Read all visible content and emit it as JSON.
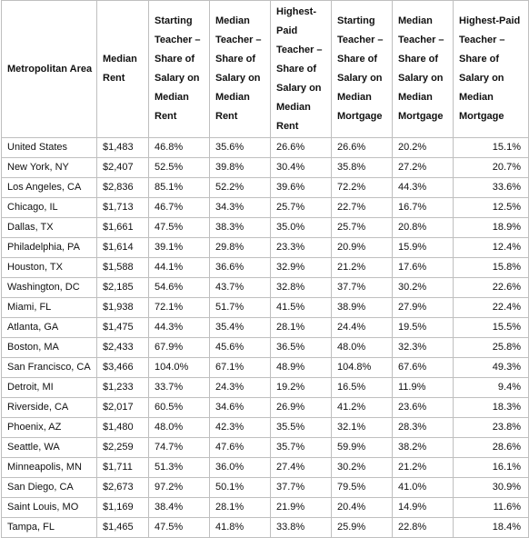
{
  "table": {
    "headers": [
      "Metropolitan Area",
      "Median Rent",
      "Starting Teacher – Share of Salary on Median Rent",
      "Median Teacher – Share of Salary on Median Rent",
      "Highest-Paid Teacher – Share of Salary on Median Rent",
      "Starting Teacher – Share of Salary on Median Mortgage",
      "Median Teacher – Share of Salary on Median Mortgage",
      "Highest-Paid Teacher – Share of Salary on Median Mortgage"
    ],
    "rows": [
      [
        "United States",
        "$1,483",
        "46.8%",
        "35.6%",
        "26.6%",
        "26.6%",
        "20.2%",
        "15.1%"
      ],
      [
        "New York, NY",
        "$2,407",
        "52.5%",
        "39.8%",
        "30.4%",
        "35.8%",
        "27.2%",
        "20.7%"
      ],
      [
        "Los Angeles, CA",
        "$2,836",
        "85.1%",
        "52.2%",
        "39.6%",
        "72.2%",
        "44.3%",
        "33.6%"
      ],
      [
        "Chicago, IL",
        "$1,713",
        "46.7%",
        "34.3%",
        "25.7%",
        "22.7%",
        "16.7%",
        "12.5%"
      ],
      [
        "Dallas, TX",
        "$1,661",
        "47.5%",
        "38.3%",
        "35.0%",
        "25.7%",
        "20.8%",
        "18.9%"
      ],
      [
        "Philadelphia, PA",
        "$1,614",
        "39.1%",
        "29.8%",
        "23.3%",
        "20.9%",
        "15.9%",
        "12.4%"
      ],
      [
        "Houston, TX",
        "$1,588",
        "44.1%",
        "36.6%",
        "32.9%",
        "21.2%",
        "17.6%",
        "15.8%"
      ],
      [
        "Washington, DC",
        "$2,185",
        "54.6%",
        "43.7%",
        "32.8%",
        "37.7%",
        "30.2%",
        "22.6%"
      ],
      [
        "Miami, FL",
        "$1,938",
        "72.1%",
        "51.7%",
        "41.5%",
        "38.9%",
        "27.9%",
        "22.4%"
      ],
      [
        "Atlanta, GA",
        "$1,475",
        "44.3%",
        "35.4%",
        "28.1%",
        "24.4%",
        "19.5%",
        "15.5%"
      ],
      [
        "Boston, MA",
        "$2,433",
        "67.9%",
        "45.6%",
        "36.5%",
        "48.0%",
        "32.3%",
        "25.8%"
      ],
      [
        "San Francisco, CA",
        "$3,466",
        "104.0%",
        "67.1%",
        "48.9%",
        "104.8%",
        "67.6%",
        "49.3%"
      ],
      [
        "Detroit, MI",
        "$1,233",
        "33.7%",
        "24.3%",
        "19.2%",
        "16.5%",
        "11.9%",
        "9.4%"
      ],
      [
        "Riverside, CA",
        "$2,017",
        "60.5%",
        "34.6%",
        "26.9%",
        "41.2%",
        "23.6%",
        "18.3%"
      ],
      [
        "Phoenix, AZ",
        "$1,480",
        "48.0%",
        "42.3%",
        "35.5%",
        "32.1%",
        "28.3%",
        "23.8%"
      ],
      [
        "Seattle, WA",
        "$2,259",
        "74.7%",
        "47.6%",
        "35.7%",
        "59.9%",
        "38.2%",
        "28.6%"
      ],
      [
        "Minneapolis, MN",
        "$1,711",
        "51.3%",
        "36.0%",
        "27.4%",
        "30.2%",
        "21.2%",
        "16.1%"
      ],
      [
        "San Diego, CA",
        "$2,673",
        "97.2%",
        "50.1%",
        "37.7%",
        "79.5%",
        "41.0%",
        "30.9%"
      ],
      [
        "Saint Louis, MO",
        "$1,169",
        "38.4%",
        "28.1%",
        "21.9%",
        "20.4%",
        "14.9%",
        "11.6%"
      ],
      [
        "Tampa, FL",
        "$1,465",
        "47.5%",
        "41.8%",
        "33.8%",
        "25.9%",
        "22.8%",
        "18.4%"
      ]
    ]
  }
}
